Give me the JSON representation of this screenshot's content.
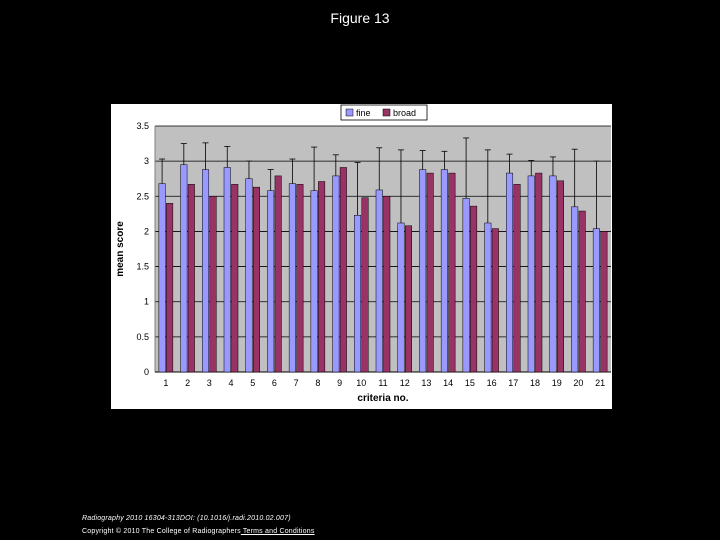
{
  "figure_title": "Figure 13",
  "footer": {
    "citation": "Radiography 2010 16304-313DOI: (10.1016/j.radi.2010.02.007)",
    "copyright": "Copyright © 2010 The College of Radiographers",
    "terms_link": " Terms and Conditions"
  },
  "chart_data": {
    "type": "bar",
    "xlabel": "criteria no.",
    "ylabel": "mean score",
    "ylim": [
      0,
      3.5
    ],
    "yticks": [
      "0",
      "0.5",
      "1",
      "1.5",
      "2",
      "2.5",
      "3",
      "3.5"
    ],
    "categories": [
      "1",
      "2",
      "3",
      "4",
      "5",
      "6",
      "7",
      "8",
      "9",
      "10",
      "11",
      "12",
      "13",
      "14",
      "15",
      "16",
      "17",
      "18",
      "19",
      "20",
      "21"
    ],
    "grid": true,
    "legend_position": "top-center",
    "colors": {
      "fine": "#9999ff",
      "broad": "#993366",
      "plot_bg": "#c0c0c0",
      "error_bar": "#000000"
    },
    "series": [
      {
        "name": "fine",
        "values": [
          2.68,
          2.95,
          2.88,
          2.91,
          2.75,
          2.58,
          2.68,
          2.58,
          2.79,
          2.23,
          2.59,
          2.12,
          2.88,
          2.88,
          2.47,
          2.12,
          2.83,
          2.79,
          2.79,
          2.35,
          2.04
        ],
        "errors": [
          0.35,
          0.3,
          0.38,
          0.3,
          0.25,
          0.3,
          0.35,
          0.62,
          0.3,
          0.75,
          0.6,
          1.04,
          0.27,
          0.26,
          0.86,
          1.04,
          0.27,
          0.22,
          0.27,
          0.82,
          0.96
        ]
      },
      {
        "name": "broad",
        "values": [
          2.4,
          2.67,
          2.5,
          2.67,
          2.63,
          2.79,
          2.67,
          2.71,
          2.91,
          2.48,
          2.5,
          2.08,
          2.83,
          2.83,
          2.36,
          2.04,
          2.67,
          2.83,
          2.72,
          2.29,
          2.0
        ]
      }
    ]
  }
}
